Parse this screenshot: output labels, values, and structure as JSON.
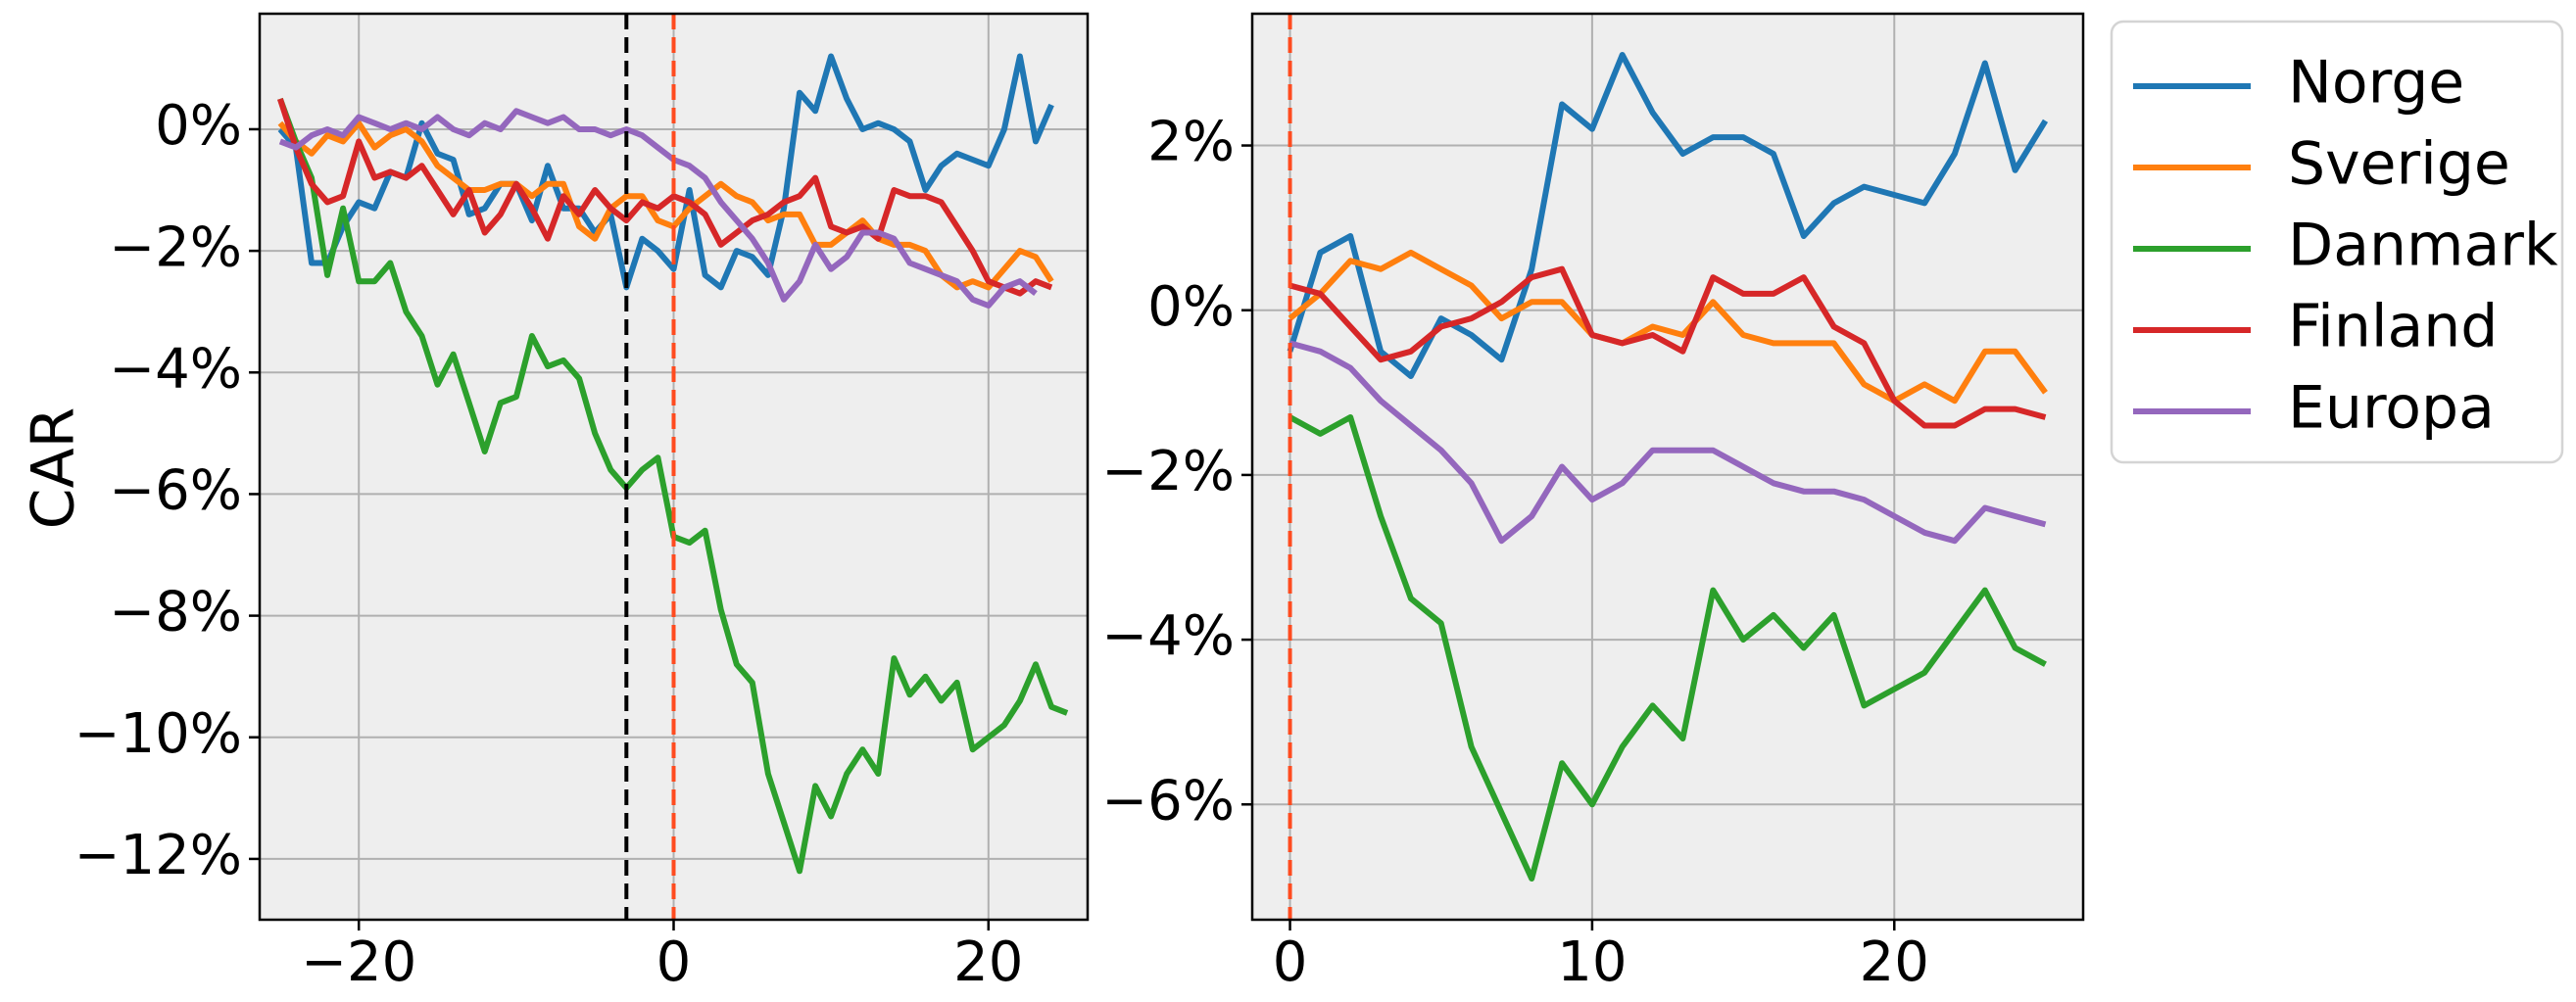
{
  "chart_data": [
    {
      "type": "line",
      "panel": "left",
      "title": "",
      "xlabel": "",
      "ylabel": "CAR",
      "xlim": [
        -26.3,
        26.3
      ],
      "ylim": [
        -13.0,
        1.9
      ],
      "xticks": [
        -20,
        0,
        20
      ],
      "xtick_labels": [
        "−20",
        "0",
        "20"
      ],
      "yticks": [
        0,
        -2,
        -4,
        -6,
        -8,
        -10,
        -12
      ],
      "ytick_labels": [
        "0%",
        "−2%",
        "−4%",
        "−6%",
        "−8%",
        "−10%",
        "−12%"
      ],
      "grid": true,
      "vertical_lines": [
        {
          "x": -3,
          "color": "#000000"
        },
        {
          "x": 0,
          "color": "#ff4b1f"
        }
      ],
      "x_start": -25,
      "series": [
        {
          "name": "Norge",
          "color": "#1f77b4",
          "values": [
            0.0,
            -0.3,
            -2.2,
            -2.2,
            -1.6,
            -1.2,
            -1.3,
            -0.7,
            -0.8,
            0.1,
            -0.4,
            -0.5,
            -1.4,
            -1.3,
            -0.9,
            -0.9,
            -1.5,
            -0.6,
            -1.3,
            -1.3,
            -1.7,
            -1.4,
            -2.6,
            -1.8,
            -2.0,
            -2.3,
            -1.0,
            -2.4,
            -2.6,
            -2.0,
            -2.1,
            -2.4,
            -1.3,
            0.6,
            0.3,
            1.2,
            0.5,
            0.0,
            0.1,
            0.0,
            -0.2,
            -1.0,
            -0.6,
            -0.4,
            -0.5,
            -0.6,
            0.0,
            1.2,
            -0.2,
            0.4
          ]
        },
        {
          "name": "Sverige",
          "color": "#ff7f0e",
          "values": [
            0.1,
            -0.2,
            -0.4,
            -0.1,
            -0.2,
            0.1,
            -0.3,
            -0.1,
            0.0,
            -0.2,
            -0.6,
            -0.8,
            -1.0,
            -1.0,
            -0.9,
            -0.9,
            -1.1,
            -0.9,
            -0.9,
            -1.6,
            -1.8,
            -1.3,
            -1.1,
            -1.1,
            -1.5,
            -1.6,
            -1.3,
            -1.1,
            -0.9,
            -1.1,
            -1.2,
            -1.5,
            -1.4,
            -1.4,
            -1.9,
            -1.9,
            -1.7,
            -1.5,
            -1.8,
            -1.9,
            -1.9,
            -2.0,
            -2.4,
            -2.6,
            -2.5,
            -2.6,
            -2.3,
            -2.0,
            -2.1,
            -2.5
          ]
        },
        {
          "name": "Danmark",
          "color": "#2ca02c",
          "values": [
            0.5,
            -0.2,
            -0.8,
            -2.4,
            -1.3,
            -2.5,
            -2.5,
            -2.2,
            -3.0,
            -3.4,
            -4.2,
            -3.7,
            -4.5,
            -5.3,
            -4.5,
            -4.4,
            -3.4,
            -3.9,
            -3.8,
            -4.1,
            -5.0,
            -5.6,
            -5.9,
            -5.6,
            -5.4,
            -6.7,
            -6.8,
            -6.6,
            -7.9,
            -8.8,
            -9.1,
            -10.6,
            -11.4,
            -12.2,
            -10.8,
            -11.3,
            -10.6,
            -10.2,
            -10.6,
            -8.7,
            -9.3,
            -9.0,
            -9.4,
            -9.1,
            -10.2,
            -10.0,
            -9.8,
            -9.4,
            -8.8,
            -9.5,
            -9.6
          ]
        },
        {
          "name": "Finland",
          "color": "#d62728",
          "values": [
            0.5,
            -0.3,
            -0.9,
            -1.2,
            -1.1,
            -0.2,
            -0.8,
            -0.7,
            -0.8,
            -0.6,
            -1.0,
            -1.4,
            -1.0,
            -1.7,
            -1.4,
            -0.9,
            -1.3,
            -1.8,
            -1.1,
            -1.4,
            -1.0,
            -1.3,
            -1.5,
            -1.2,
            -1.3,
            -1.1,
            -1.2,
            -1.4,
            -1.9,
            -1.7,
            -1.5,
            -1.4,
            -1.2,
            -1.1,
            -0.8,
            -1.6,
            -1.7,
            -1.6,
            -1.8,
            -1.0,
            -1.1,
            -1.1,
            -1.2,
            -1.6,
            -2.0,
            -2.5,
            -2.6,
            -2.7,
            -2.5,
            -2.6
          ]
        },
        {
          "name": "Europa",
          "color": "#9467bd",
          "values": [
            -0.2,
            -0.3,
            -0.1,
            0.0,
            -0.1,
            0.2,
            0.1,
            0.0,
            0.1,
            0.0,
            0.2,
            0.0,
            -0.1,
            0.1,
            0.0,
            0.3,
            0.2,
            0.1,
            0.2,
            0.0,
            0.0,
            -0.1,
            0.0,
            -0.1,
            -0.3,
            -0.5,
            -0.6,
            -0.8,
            -1.2,
            -1.5,
            -1.8,
            -2.2,
            -2.8,
            -2.5,
            -1.9,
            -2.3,
            -2.1,
            -1.7,
            -1.7,
            -1.8,
            -2.2,
            -2.3,
            -2.4,
            -2.5,
            -2.8,
            -2.9,
            -2.6,
            -2.5,
            -2.7
          ]
        }
      ]
    },
    {
      "type": "line",
      "panel": "right",
      "title": "",
      "xlabel": "",
      "ylabel": "",
      "xlim": [
        -1.25,
        26.25
      ],
      "ylim": [
        -7.4,
        3.6
      ],
      "xticks": [
        0,
        10,
        20
      ],
      "xtick_labels": [
        "0",
        "10",
        "20"
      ],
      "yticks": [
        2,
        0,
        -2,
        -4,
        -6
      ],
      "ytick_labels": [
        "2%",
        "0%",
        "−2%",
        "−4%",
        "−6%"
      ],
      "grid": true,
      "vertical_lines": [
        {
          "x": 0,
          "color": "#ff4b1f"
        }
      ],
      "x_start": 0,
      "series": [
        {
          "name": "Norge",
          "color": "#1f77b4",
          "values": [
            -0.5,
            0.7,
            0.9,
            -0.5,
            -0.8,
            -0.1,
            -0.3,
            -0.6,
            0.5,
            2.5,
            2.2,
            3.1,
            2.4,
            1.9,
            2.1,
            2.1,
            1.9,
            0.9,
            1.3,
            1.5,
            1.4,
            1.3,
            1.9,
            3.0,
            1.7,
            2.3
          ]
        },
        {
          "name": "Sverige",
          "color": "#ff7f0e",
          "values": [
            -0.1,
            0.2,
            0.6,
            0.5,
            0.7,
            0.5,
            0.3,
            -0.1,
            0.1,
            0.1,
            -0.3,
            -0.4,
            -0.2,
            -0.3,
            0.1,
            -0.3,
            -0.4,
            -0.4,
            -0.4,
            -0.9,
            -1.1,
            -0.9,
            -1.1,
            -0.5,
            -0.5,
            -1.0
          ]
        },
        {
          "name": "Danmark",
          "color": "#2ca02c",
          "values": [
            -1.3,
            -1.5,
            -1.3,
            -2.5,
            -3.5,
            -3.8,
            -5.3,
            -6.1,
            -6.9,
            -5.5,
            -6.0,
            -5.3,
            -4.8,
            -5.2,
            -3.4,
            -4.0,
            -3.7,
            -4.1,
            -3.7,
            -4.8,
            -4.6,
            -4.4,
            -3.9,
            -3.4,
            -4.1,
            -4.3
          ]
        },
        {
          "name": "Finland",
          "color": "#d62728",
          "values": [
            0.3,
            0.2,
            -0.2,
            -0.6,
            -0.5,
            -0.2,
            -0.1,
            0.1,
            0.4,
            0.5,
            -0.3,
            -0.4,
            -0.3,
            -0.5,
            0.4,
            0.2,
            0.2,
            0.4,
            -0.2,
            -0.4,
            -1.1,
            -1.4,
            -1.4,
            -1.2,
            -1.2,
            -1.3
          ]
        },
        {
          "name": "Europa",
          "color": "#9467bd",
          "values": [
            -0.4,
            -0.5,
            -0.7,
            -1.1,
            -1.4,
            -1.7,
            -2.1,
            -2.8,
            -2.5,
            -1.9,
            -2.3,
            -2.1,
            -1.7,
            -1.7,
            -1.7,
            -1.9,
            -2.1,
            -2.2,
            -2.2,
            -2.3,
            -2.5,
            -2.7,
            -2.8,
            -2.4,
            -2.5,
            -2.6
          ]
        }
      ]
    }
  ],
  "legend": {
    "placement": "outside-right",
    "entries": [
      {
        "name": "Norge",
        "color": "#1f77b4"
      },
      {
        "name": "Sverige",
        "color": "#ff7f0e"
      },
      {
        "name": "Danmark",
        "color": "#2ca02c"
      },
      {
        "name": "Finland",
        "color": "#d62728"
      },
      {
        "name": "Europa",
        "color": "#9467bd"
      }
    ]
  }
}
